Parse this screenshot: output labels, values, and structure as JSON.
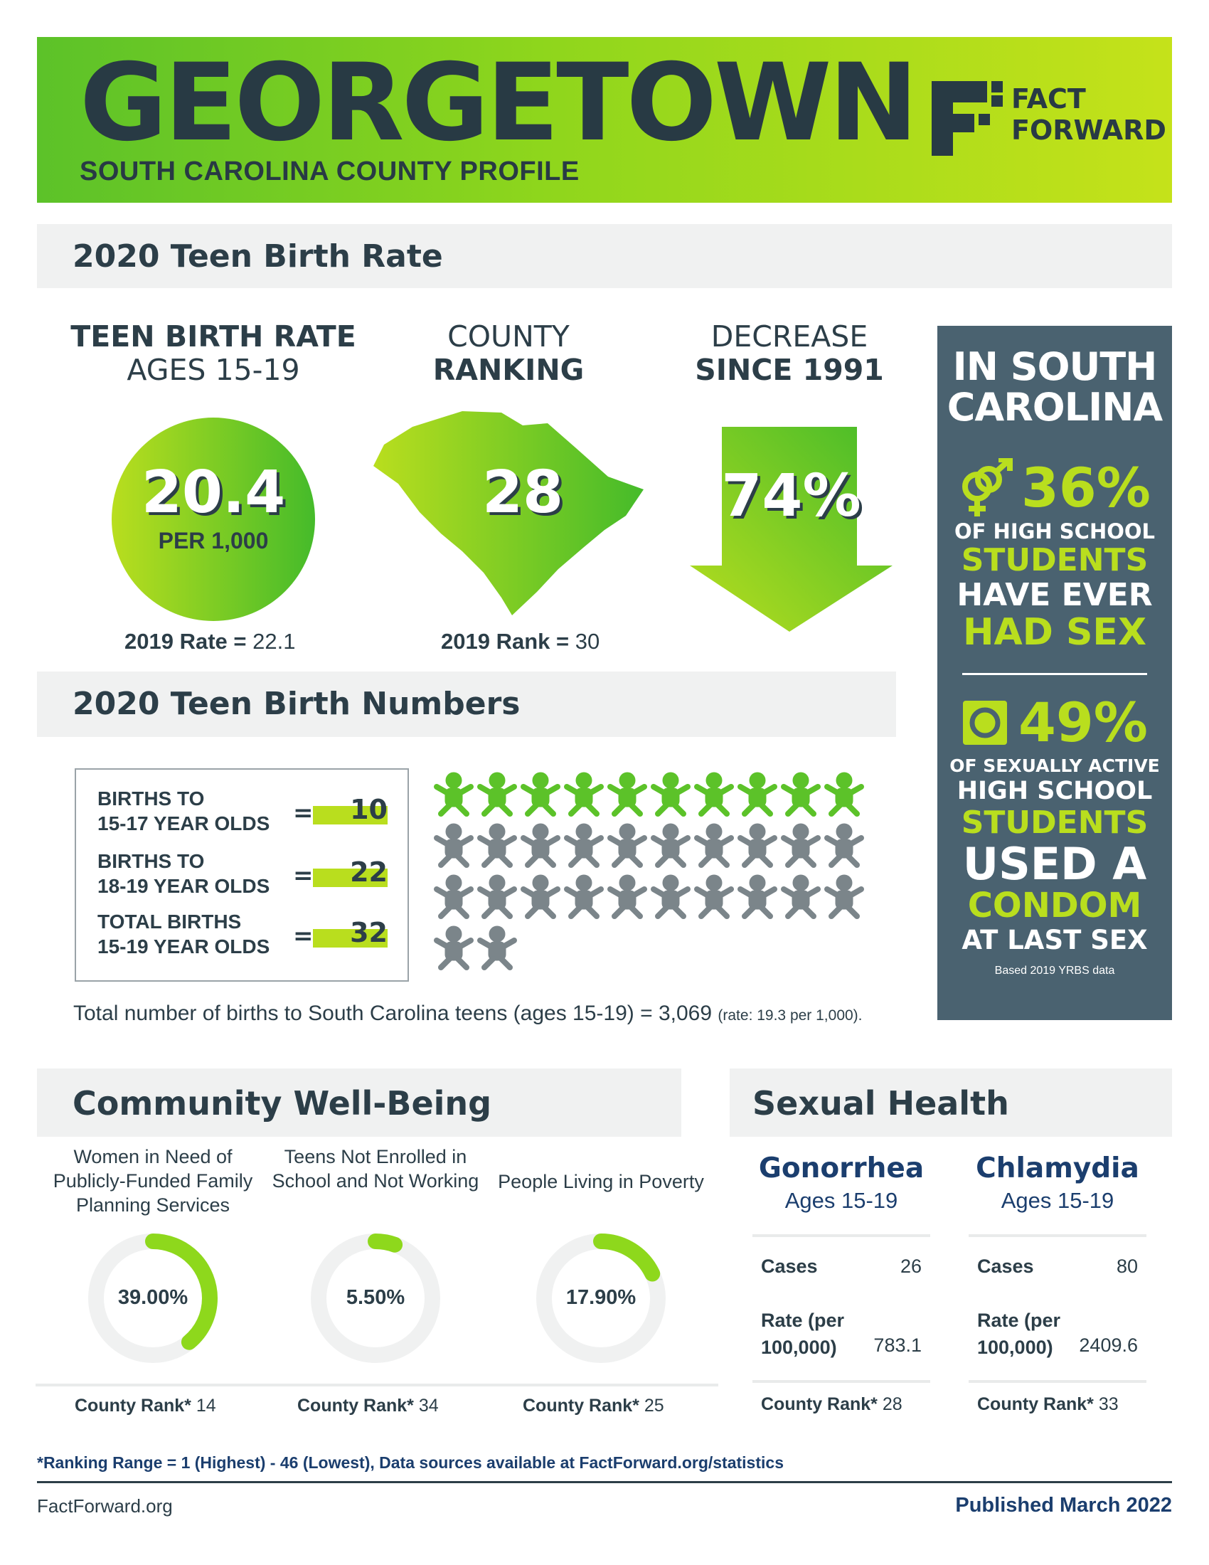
{
  "header": {
    "title": "GEORGETOWN",
    "subtitle": "SOUTH CAROLINA COUNTY PROFILE",
    "logo_line1": "FACT",
    "logo_line2": "FORWARD"
  },
  "teen_birth_rate": {
    "section_title": "2020 Teen Birth Rate",
    "rate_head_1": "TEEN BIRTH RATE",
    "rate_head_2": "AGES 15-19",
    "rate_value": "20.4",
    "rate_unit": "PER 1,000",
    "rate_prev_label": "2019 Rate =",
    "rate_prev_value": "22.1",
    "rank_head_1": "COUNTY",
    "rank_head_2": "RANKING",
    "rank_value": "28",
    "rank_prev_label": "2019 Rank =",
    "rank_prev_value": "30",
    "decrease_head_1": "DECREASE",
    "decrease_head_2": "SINCE 1991",
    "decrease_value": "74%"
  },
  "sidebar": {
    "title_1": "IN SOUTH",
    "title_2": "CAROLINA",
    "stat1_value": "36%",
    "stat1_line1": "OF HIGH SCHOOL",
    "stat1_line2": "STUDENTS",
    "stat1_line3": "HAVE EVER",
    "stat1_line4": "HAD SEX",
    "stat2_value": "49%",
    "stat2_line1": "OF SEXUALLY ACTIVE",
    "stat2_line2": "HIGH SCHOOL",
    "stat2_line3": "STUDENTS",
    "stat2_line4": "USED A",
    "stat2_line5": "CONDOM",
    "stat2_line6": "AT LAST SEX",
    "source": "Based 2019 YRBS data"
  },
  "teen_birth_numbers": {
    "section_title": "2020 Teen Birth Numbers",
    "rows": [
      {
        "label1": "BIRTHS TO",
        "label2": "15-17 YEAR OLDS",
        "value": "10"
      },
      {
        "label1": "BIRTHS TO",
        "label2": "18-19 YEAR OLDS",
        "value": "22"
      },
      {
        "label1": "TOTAL BIRTHS",
        "label2": "15-19 YEAR OLDS",
        "value": "32"
      }
    ],
    "equals": "=",
    "icon_counts": {
      "green": 10,
      "gray": 22
    },
    "state_note_main": "Total number of births to South Carolina teens (ages 15-19) = 3,069",
    "state_note_rate": "(rate: 19.3 per 1,000)."
  },
  "community": {
    "section_title": "Community Well-Being",
    "items": [
      {
        "label": "Women in Need of Publicly-Funded Family Planning Services",
        "value": "39.00%",
        "fraction": 0.39,
        "rank_label": "County Rank*",
        "rank": "14"
      },
      {
        "label": "Teens Not Enrolled in School and Not Working",
        "value": "5.50%",
        "fraction": 0.055,
        "rank_label": "County Rank*",
        "rank": "34"
      },
      {
        "label": "People Living in Poverty",
        "value": "17.90%",
        "fraction": 0.179,
        "rank_label": "County Rank*",
        "rank": "25"
      }
    ]
  },
  "sexual_health": {
    "section_title": "Sexual Health",
    "columns": [
      {
        "title": "Gonorrhea",
        "subtitle": "Ages 15-19",
        "cases_label": "Cases",
        "cases": "26",
        "rate_label_1": "Rate (per",
        "rate_label_2": "100,000)",
        "rate": "783.1",
        "rank_label": "County Rank*",
        "rank": "28"
      },
      {
        "title": "Chlamydia",
        "subtitle": "Ages 15-19",
        "cases_label": "Cases",
        "cases": "80",
        "rate_label_1": "Rate (per",
        "rate_label_2": "100,000)",
        "rate": "2409.6",
        "rank_label": "County Rank*",
        "rank": "33"
      }
    ]
  },
  "footer": {
    "note": "*Ranking Range = 1 (Highest) - 46 (Lowest), Data sources available at FactForward.org/statistics",
    "site": "FactForward.org",
    "published": "Published March 2022"
  },
  "colors": {
    "dark": "#2c3e48",
    "green": "#5cc229",
    "lime": "#b9de1e",
    "sidebar": "#4a6270",
    "band": "#f0f1f1",
    "icon_gray": "#7b858a"
  }
}
